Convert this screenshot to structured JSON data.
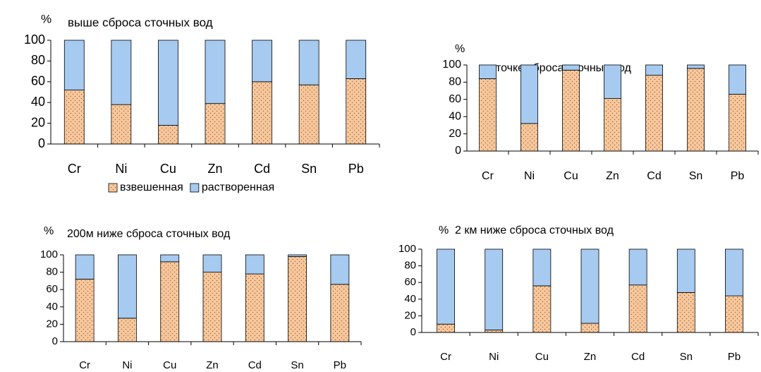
{
  "chart_data": [
    {
      "type": "stacked_bar",
      "title": "выше сброса сточных вод",
      "y_label": "%",
      "categories": [
        "Cr",
        "Ni",
        "Cu",
        "Zn",
        "Cd",
        "Sn",
        "Pb"
      ],
      "series": [
        {
          "name": "взвешенная",
          "color": "#f9c79a",
          "values": [
            52,
            38,
            18,
            39,
            60,
            57,
            63
          ]
        },
        {
          "name": "растворенная",
          "color": "#a6caf0",
          "values": [
            48,
            62,
            82,
            61,
            40,
            43,
            37
          ]
        }
      ],
      "ylim": [
        0,
        100
      ],
      "yticks": [
        0,
        20,
        40,
        60,
        80,
        100
      ],
      "legend": "bottom"
    },
    {
      "type": "stacked_bar",
      "title": "в точке сброса сточных вод",
      "y_label": "%",
      "categories": [
        "Cr",
        "Ni",
        "Cu",
        "Zn",
        "Cd",
        "Sn",
        "Pb"
      ],
      "series": [
        {
          "color": "#f9c79a",
          "values": [
            84,
            32,
            94,
            61,
            88,
            96,
            66
          ]
        },
        {
          "color": "#a6caf0",
          "values": [
            16,
            68,
            6,
            39,
            12,
            4,
            34
          ]
        }
      ],
      "ylim": [
        0,
        100
      ],
      "yticks": [
        0,
        20,
        40,
        60,
        80,
        100
      ]
    },
    {
      "type": "stacked_bar",
      "title": "200м ниже сброса сточных вод",
      "y_label": "%",
      "categories": [
        "Cr",
        "Ni",
        "Cu",
        "Zn",
        "Cd",
        "Sn",
        "Pb"
      ],
      "series": [
        {
          "color": "#f9c79a",
          "values": [
            72,
            27,
            92,
            80,
            78,
            98,
            66
          ]
        },
        {
          "color": "#a6caf0",
          "values": [
            28,
            73,
            8,
            20,
            22,
            2,
            34
          ]
        }
      ],
      "ylim": [
        0,
        100
      ],
      "yticks": [
        0,
        20,
        40,
        60,
        80,
        100
      ]
    },
    {
      "type": "stacked_bar",
      "title": "2 км ниже сброса сточных вод",
      "y_label": "%",
      "categories": [
        "Cr",
        "Ni",
        "Cu",
        "Zn",
        "Cd",
        "Sn",
        "Pb"
      ],
      "series": [
        {
          "color": "#f9c79a",
          "values": [
            10,
            3,
            56,
            11,
            57,
            48,
            44
          ]
        },
        {
          "color": "#a6caf0",
          "values": [
            90,
            97,
            44,
            89,
            43,
            52,
            56
          ]
        }
      ],
      "ylim": [
        0,
        100
      ],
      "yticks": [
        0,
        20,
        40,
        60,
        80,
        100
      ]
    }
  ]
}
